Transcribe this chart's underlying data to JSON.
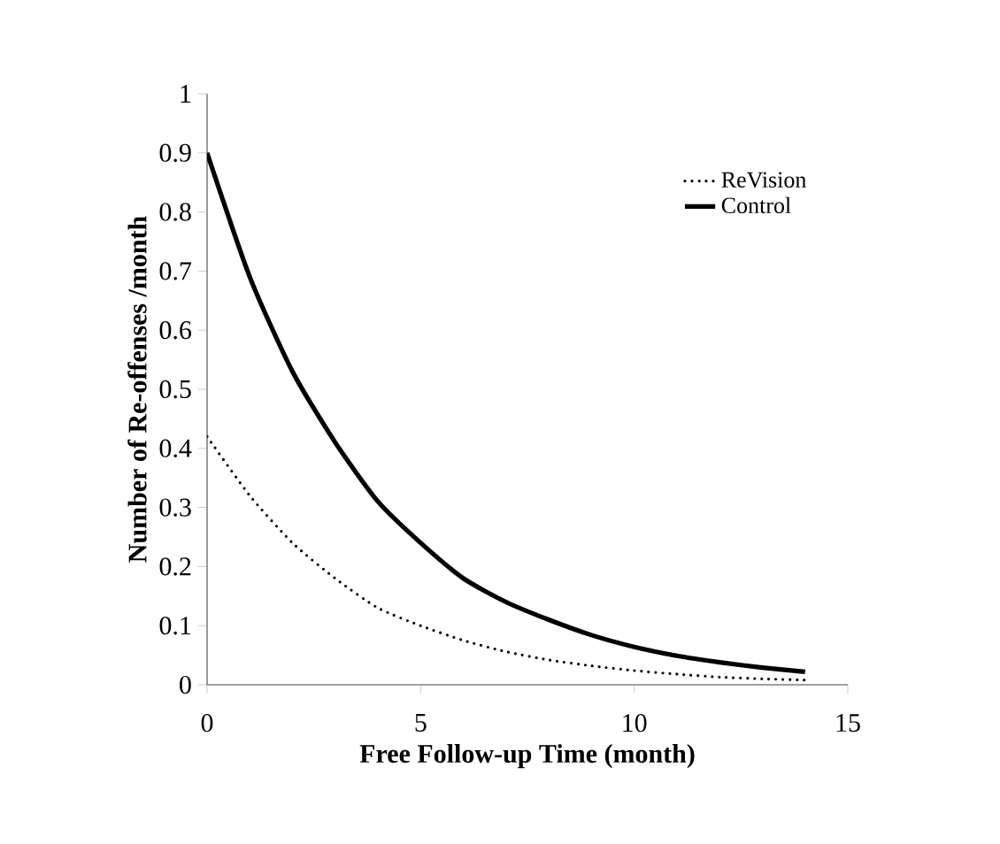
{
  "chart_data": {
    "type": "line",
    "xlabel": "Free Follow-up Time (month)",
    "ylabel": "Number of Re-offenses /month",
    "x": [
      0,
      1,
      2,
      3,
      4,
      5,
      6,
      7,
      8,
      9,
      10,
      11,
      12,
      13,
      14
    ],
    "series": [
      {
        "name": "ReVision",
        "color": "#000000",
        "line_style": "dotted",
        "values": [
          0.42,
          0.32,
          0.24,
          0.18,
          0.13,
          0.1,
          0.075,
          0.056,
          0.042,
          0.032,
          0.024,
          0.018,
          0.013,
          0.01,
          0.008
        ]
      },
      {
        "name": "Control",
        "color": "#000000",
        "line_style": "solid",
        "values": [
          0.9,
          0.69,
          0.53,
          0.41,
          0.31,
          0.24,
          0.18,
          0.14,
          0.11,
          0.084,
          0.064,
          0.049,
          0.038,
          0.029,
          0.022
        ]
      }
    ],
    "xlim": [
      0,
      15
    ],
    "xticks": [
      0,
      5,
      10,
      15
    ],
    "ylim": [
      0,
      1
    ],
    "yticks": [
      0,
      0.1,
      0.2,
      0.3,
      0.4,
      0.5,
      0.6,
      0.7,
      0.8,
      0.9,
      1
    ],
    "grid": false,
    "legend": "top right",
    "marker": "none"
  }
}
